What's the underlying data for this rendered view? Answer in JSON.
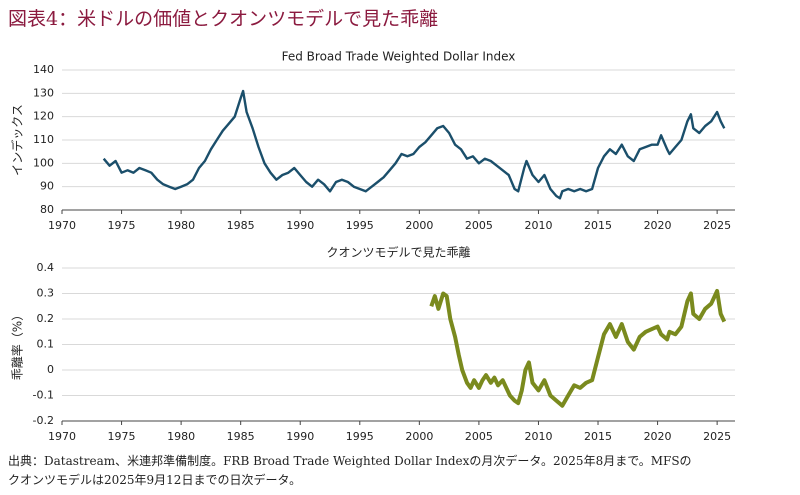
{
  "title": "図表4：米ドルの価値とクオンツモデルで見た乖離",
  "chart_data": [
    {
      "type": "line",
      "title": "Fed Broad Trade Weighted Dollar Index",
      "y_label": "インデックス",
      "color": "#1b4f6b",
      "grid": true,
      "xlim": [
        1970,
        2026.5
      ],
      "xticks": [
        1970,
        1975,
        1980,
        1985,
        1990,
        1995,
        2000,
        2005,
        2010,
        2015,
        2020,
        2025
      ],
      "ylim": [
        80,
        140
      ],
      "yticks": [
        80,
        90,
        100,
        110,
        120,
        130,
        140
      ],
      "x": [
        1973.5,
        1974,
        1974.5,
        1975,
        1975.5,
        1976,
        1976.5,
        1977,
        1977.5,
        1978,
        1978.5,
        1979,
        1979.5,
        1980,
        1980.5,
        1981,
        1981.5,
        1982,
        1982.5,
        1983,
        1983.5,
        1984,
        1984.5,
        1985,
        1985.2,
        1985.5,
        1986,
        1986.5,
        1987,
        1987.5,
        1988,
        1988.5,
        1989,
        1989.5,
        1990,
        1990.5,
        1991,
        1991.5,
        1992,
        1992.5,
        1993,
        1993.5,
        1994,
        1994.5,
        1995,
        1995.5,
        1996,
        1996.5,
        1997,
        1997.5,
        1998,
        1998.5,
        1999,
        1999.5,
        2000,
        2000.5,
        2001,
        2001.5,
        2002,
        2002.5,
        2003,
        2003.5,
        2004,
        2004.5,
        2005,
        2005.5,
        2006,
        2006.5,
        2007,
        2007.5,
        2008,
        2008.3,
        2008.8,
        2009,
        2009.5,
        2010,
        2010.5,
        2011,
        2011.5,
        2011.8,
        2012,
        2012.5,
        2013,
        2013.5,
        2014,
        2014.5,
        2015,
        2015.5,
        2016,
        2016.5,
        2017,
        2017.5,
        2018,
        2018.5,
        2019,
        2019.5,
        2020,
        2020.3,
        2020.8,
        2021,
        2021.5,
        2022,
        2022.5,
        2022.8,
        2023,
        2023.5,
        2024,
        2024.5,
        2025,
        2025.3,
        2025.6
      ],
      "values": [
        102,
        99,
        101,
        96,
        97,
        96,
        98,
        97,
        96,
        93,
        91,
        90,
        89,
        90,
        91,
        93,
        98,
        101,
        106,
        110,
        114,
        117,
        120,
        128,
        131,
        122,
        115,
        107,
        100,
        96,
        93,
        95,
        96,
        98,
        95,
        92,
        90,
        93,
        91,
        88,
        92,
        93,
        92,
        90,
        89,
        88,
        90,
        92,
        94,
        97,
        100,
        104,
        103,
        104,
        107,
        109,
        112,
        115,
        116,
        113,
        108,
        106,
        102,
        103,
        100,
        102,
        101,
        99,
        97,
        95,
        89,
        88,
        98,
        101,
        95,
        92,
        95,
        89,
        86,
        85,
        88,
        89,
        88,
        89,
        88,
        89,
        98,
        103,
        106,
        104,
        108,
        103,
        101,
        106,
        107,
        108,
        108,
        112,
        106,
        104,
        107,
        110,
        118,
        121,
        115,
        113,
        116,
        118,
        122,
        118,
        115
      ]
    },
    {
      "type": "line",
      "title": "クオンツモデルで見た乖離",
      "y_label": "乖離率（%）",
      "color": "#7a8a1e",
      "grid": true,
      "xlim": [
        1970,
        2026.5
      ],
      "xticks": [
        1970,
        1975,
        1980,
        1985,
        1990,
        1995,
        2000,
        2005,
        2010,
        2015,
        2020,
        2025
      ],
      "ylim": [
        -0.2,
        0.4
      ],
      "yticks": [
        -0.2,
        -0.1,
        0,
        0.1,
        0.2,
        0.3,
        0.4
      ],
      "x": [
        2001,
        2001.3,
        2001.6,
        2002,
        2002.3,
        2002.6,
        2003,
        2003.3,
        2003.6,
        2004,
        2004.3,
        2004.6,
        2005,
        2005.3,
        2005.6,
        2006,
        2006.3,
        2006.6,
        2007,
        2007.3,
        2007.6,
        2008,
        2008.3,
        2008.6,
        2008.9,
        2009.2,
        2009.5,
        2010,
        2010.5,
        2011,
        2011.5,
        2012,
        2012.5,
        2013,
        2013.5,
        2014,
        2014.5,
        2015,
        2015.5,
        2016,
        2016.5,
        2017,
        2017.5,
        2018,
        2018.5,
        2019,
        2019.5,
        2020,
        2020.3,
        2020.8,
        2021,
        2021.5,
        2022,
        2022.5,
        2022.8,
        2023,
        2023.5,
        2024,
        2024.5,
        2025,
        2025.3,
        2025.6
      ],
      "values": [
        0.25,
        0.29,
        0.24,
        0.3,
        0.29,
        0.2,
        0.13,
        0.06,
        0.0,
        -0.05,
        -0.07,
        -0.04,
        -0.07,
        -0.04,
        -0.02,
        -0.05,
        -0.03,
        -0.06,
        -0.04,
        -0.07,
        -0.1,
        -0.12,
        -0.13,
        -0.08,
        0.0,
        0.03,
        -0.05,
        -0.08,
        -0.04,
        -0.1,
        -0.12,
        -0.14,
        -0.1,
        -0.06,
        -0.07,
        -0.05,
        -0.04,
        0.05,
        0.14,
        0.18,
        0.13,
        0.18,
        0.11,
        0.08,
        0.13,
        0.15,
        0.16,
        0.17,
        0.14,
        0.12,
        0.15,
        0.14,
        0.17,
        0.27,
        0.3,
        0.22,
        0.2,
        0.24,
        0.26,
        0.31,
        0.22,
        0.19
      ]
    }
  ],
  "note": [
    "出典：Datastream、米連邦準備制度。FRB Broad Trade Weighted Dollar Indexの月次データ。2025年8月まで。MFSの",
    "クオンツモデルは2025年9月12日までの日次データ。"
  ]
}
